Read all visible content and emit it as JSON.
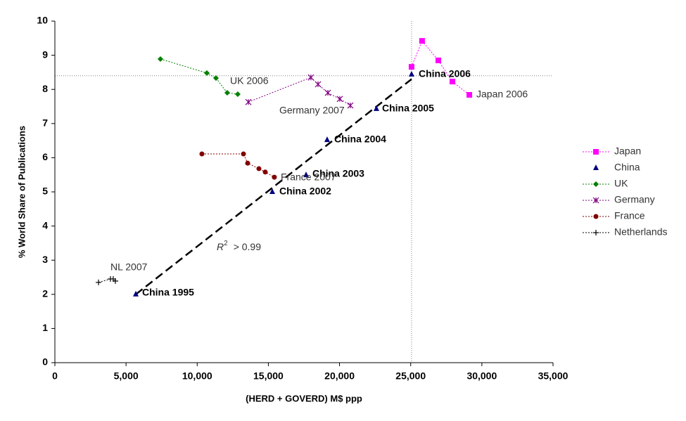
{
  "chart_data": {
    "type": "scatter",
    "x_label": "(HERD + GOVERD) M$ ppp",
    "y_label": "% World Share of Publications",
    "xlim": [
      0,
      35000
    ],
    "ylim": [
      0,
      10
    ],
    "xticks": [
      0,
      {
        "value": 5000,
        "label": "5,000"
      },
      {
        "value": 10000,
        "label": "10,000"
      },
      {
        "value": 15000,
        "label": "15,000"
      },
      {
        "value": 20000,
        "label": "20,000"
      },
      {
        "value": 25000,
        "label": "25,000"
      },
      {
        "value": 30000,
        "label": "30,000"
      },
      {
        "value": 35000,
        "label": "35,000"
      }
    ],
    "yticks": [
      0,
      1,
      2,
      3,
      4,
      5,
      6,
      7,
      8,
      9,
      10
    ],
    "grid": false,
    "legend": "right",
    "series": [
      {
        "name": "Japan",
        "color": "#ff00ff",
        "marker": "square",
        "connected": true,
        "x": [
          25060,
          25800,
          26940,
          27930,
          29120
        ],
        "values": [
          8.66,
          9.42,
          8.85,
          8.23,
          7.84
        ]
      },
      {
        "name": "China",
        "color": "#000080",
        "marker": "triangle",
        "connected": false,
        "x": [
          5685,
          15275,
          17650,
          19130,
          22590,
          25060
        ],
        "values": [
          2.0,
          5.0,
          5.49,
          6.52,
          7.43,
          8.44
        ]
      },
      {
        "name": "UK",
        "color": "#008000",
        "marker": "diamond",
        "connected": true,
        "x": [
          7415,
          10677,
          11320,
          12110,
          12850
        ],
        "values": [
          8.89,
          8.48,
          8.33,
          7.9,
          7.86
        ]
      },
      {
        "name": "Germany",
        "color": "#800080",
        "marker": "asterisk",
        "connected": true,
        "x": [
          13595,
          17990,
          18490,
          19180,
          20020,
          20760
        ],
        "values": [
          7.63,
          8.35,
          8.15,
          7.9,
          7.72,
          7.53
        ]
      },
      {
        "name": "France",
        "color": "#800000",
        "marker": "circle",
        "connected": true,
        "x": [
          10330,
          13250,
          13545,
          14335,
          14780,
          15420
        ],
        "values": [
          6.11,
          6.11,
          5.84,
          5.68,
          5.58,
          5.43
        ]
      },
      {
        "name": "Netherlands",
        "color": "#000000",
        "marker": "plus",
        "connected": true,
        "x": [
          3065,
          3905,
          4100,
          4250
        ],
        "values": [
          2.35,
          2.45,
          2.45,
          2.39
        ]
      }
    ],
    "trend_line": {
      "color": "#000000",
      "x": [
        5685,
        25060
      ],
      "values": [
        2.0,
        8.3
      ]
    },
    "reference_lines": {
      "color": "#808080",
      "x": 25060,
      "y": 8.4
    },
    "r_squared": {
      "symbol": "R",
      "power": "2",
      "text": "> 0.99"
    },
    "annotations": [
      "China 2006",
      "China 2005",
      "China 2004",
      "China 2003",
      "China 2002",
      "China 1995",
      "Japan 2006",
      "UK 2006",
      "Germany 2007",
      "France 2007",
      "NL 2007"
    ]
  }
}
